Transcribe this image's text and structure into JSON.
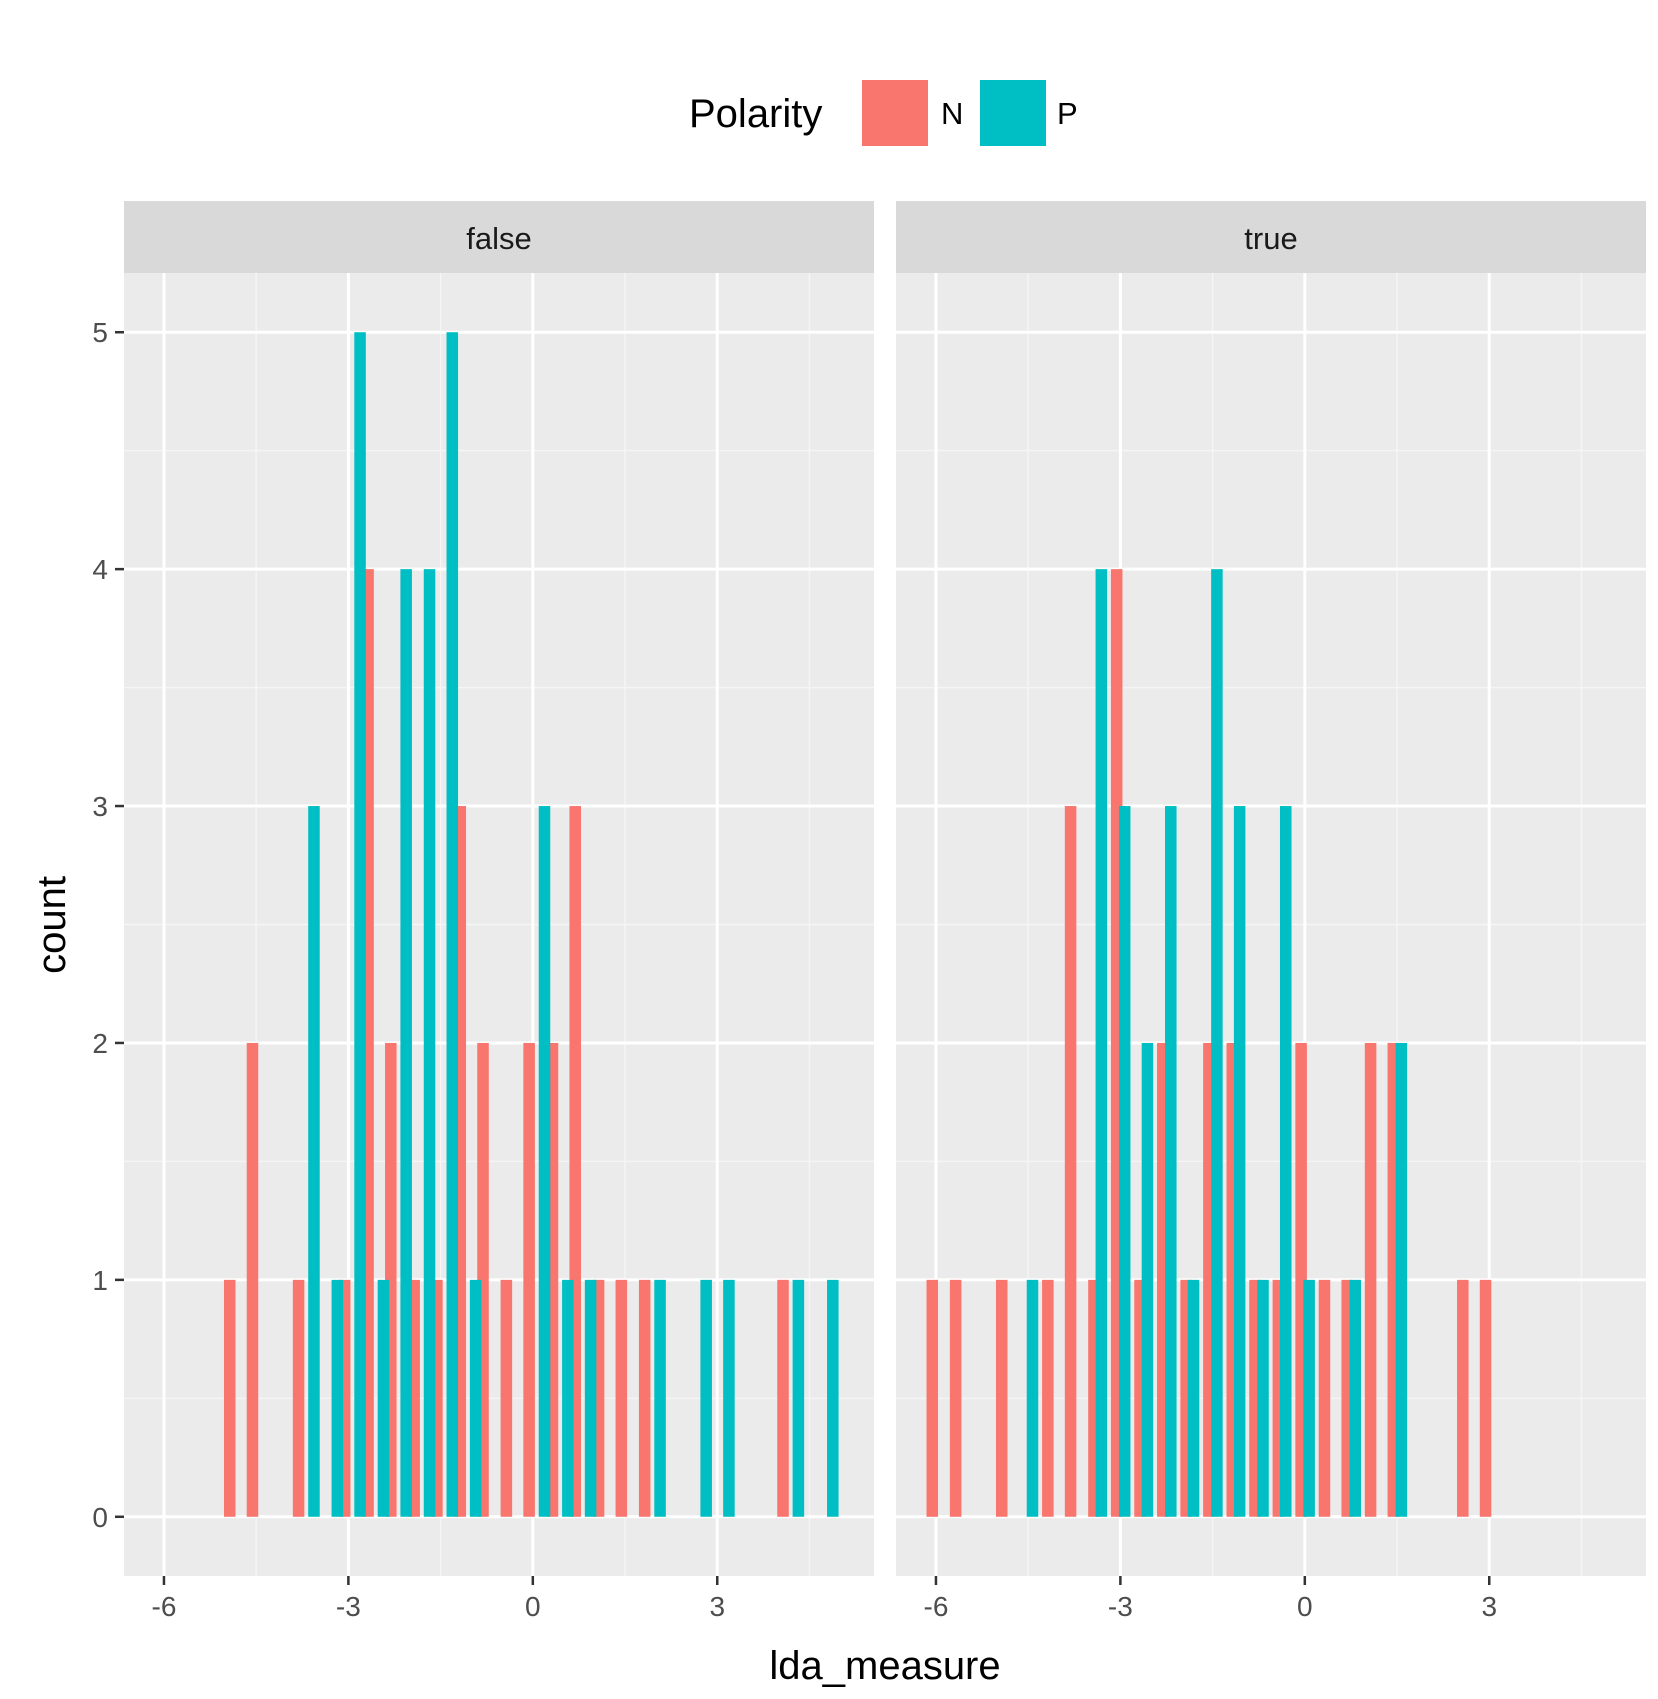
{
  "chart_data": {
    "type": "bar",
    "xlabel": "lda_measure",
    "ylabel": "count",
    "legend": {
      "title": "Polarity",
      "position": "top",
      "entries": [
        {
          "label": "N",
          "color": "#F8766D"
        },
        {
          "label": "P",
          "color": "#00BFC4"
        }
      ]
    },
    "x_ticks": [
      "-6",
      "-3",
      "0",
      "3"
    ],
    "x_tick_values": [
      -6,
      -3,
      0,
      3
    ],
    "y_ticks": [
      "0",
      "1",
      "2",
      "3",
      "4",
      "5"
    ],
    "y_tick_values": [
      0,
      1,
      2,
      3,
      4,
      5
    ],
    "xlim": [
      -6.65,
      5.55
    ],
    "ylim": [
      -0.25,
      5.25
    ],
    "grid": true,
    "bin_width": 0.375,
    "panels": [
      {
        "strip": "false",
        "series": [
          {
            "name": "N",
            "x": [
              -4.93,
              -4.56,
              -3.81,
              -3.06,
              -2.68,
              -2.31,
              -1.93,
              -1.56,
              -1.18,
              -0.81,
              -0.43,
              -0.06,
              0.32,
              0.69,
              1.07,
              1.44,
              1.82,
              4.07
            ],
            "y": [
              1,
              2,
              1,
              1,
              4,
              2,
              1,
              1,
              3,
              2,
              1,
              2,
              2,
              3,
              1,
              1,
              1,
              1
            ]
          },
          {
            "name": "P",
            "x": [
              -3.56,
              -3.18,
              -2.81,
              -2.43,
              -2.06,
              -1.68,
              -1.31,
              -0.93,
              0.19,
              0.57,
              0.94,
              2.07,
              2.82,
              3.19,
              4.32,
              4.88
            ],
            "y": [
              3,
              1,
              5,
              1,
              4,
              4,
              5,
              1,
              3,
              1,
              1,
              1,
              1,
              1,
              1,
              1
            ]
          }
        ]
      },
      {
        "strip": "true",
        "series": [
          {
            "name": "N",
            "x": [
              -6.06,
              -5.68,
              -4.93,
              -4.18,
              -3.81,
              -3.43,
              -3.06,
              -2.68,
              -2.31,
              -1.93,
              -1.56,
              -1.18,
              -0.81,
              -0.43,
              -0.06,
              0.32,
              0.69,
              1.07,
              1.44,
              2.57,
              2.94
            ],
            "y": [
              1,
              1,
              1,
              1,
              3,
              1,
              4,
              1,
              2,
              1,
              2,
              2,
              1,
              1,
              2,
              1,
              1,
              2,
              2,
              1,
              1
            ]
          },
          {
            "name": "P",
            "x": [
              -4.43,
              -3.31,
              -2.93,
              -2.56,
              -2.18,
              -1.81,
              -1.43,
              -1.06,
              -0.68,
              -0.31,
              0.07,
              0.82,
              1.57
            ],
            "y": [
              1,
              4,
              3,
              2,
              3,
              1,
              4,
              3,
              1,
              3,
              1,
              1,
              2
            ]
          }
        ]
      }
    ]
  }
}
